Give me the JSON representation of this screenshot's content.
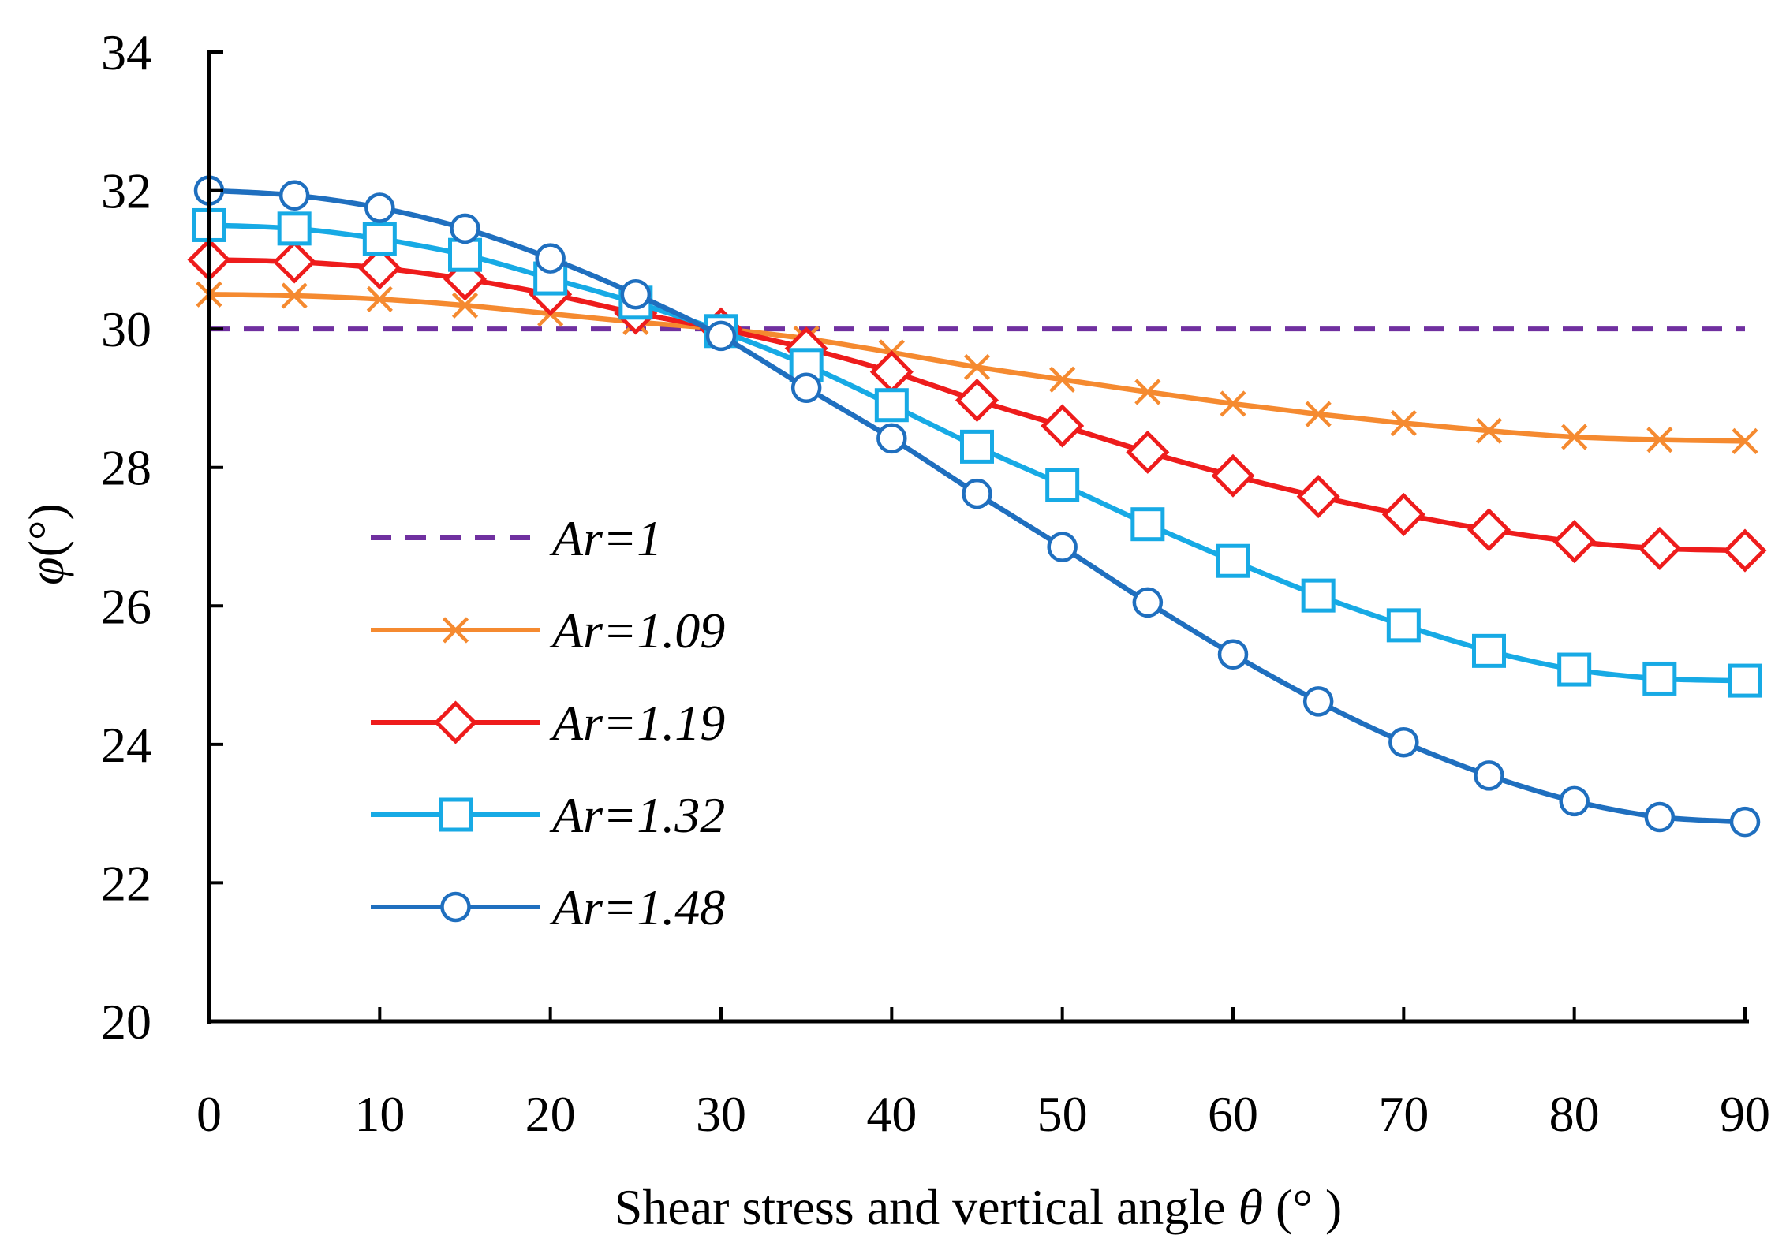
{
  "chart_data": {
    "type": "line",
    "title": "",
    "xlabel": "Shear stress and vertical angle θ (°  )",
    "xlabel_parts": {
      "text": "Shear stress and vertical angle ",
      "symbol": "θ",
      "unit": " (°  )"
    },
    "ylabel": "φ (°)",
    "ylabel_parts": {
      "symbol": "φ",
      "unit": "(°)"
    },
    "xlim": [
      0,
      90
    ],
    "ylim": [
      20,
      34
    ],
    "x_ticks": [
      0,
      10,
      20,
      30,
      40,
      50,
      60,
      70,
      80,
      90
    ],
    "y_ticks": [
      20,
      22,
      24,
      26,
      28,
      30,
      32,
      34
    ],
    "grid": false,
    "legend_position": "center-left",
    "x": [
      0,
      5,
      10,
      15,
      20,
      25,
      30,
      35,
      40,
      45,
      50,
      55,
      60,
      65,
      70,
      75,
      80,
      85,
      90
    ],
    "series": [
      {
        "name": "Ar=1",
        "color": "#7030A0",
        "marker": "none",
        "dash": "dashed",
        "values": [
          30,
          30,
          30,
          30,
          30,
          30,
          30,
          30,
          30,
          30,
          30,
          30,
          30,
          30,
          30,
          30,
          30,
          30,
          30
        ]
      },
      {
        "name": "Ar=1.09",
        "color": "#F58A30",
        "marker": "x",
        "dash": "solid",
        "values": [
          30.5,
          30.48,
          30.43,
          30.34,
          30.22,
          30.1,
          30.0,
          29.86,
          29.66,
          29.45,
          29.27,
          29.09,
          28.92,
          28.77,
          28.64,
          28.53,
          28.44,
          28.4,
          28.38
        ]
      },
      {
        "name": "Ar=1.19",
        "color": "#EE1C1C",
        "marker": "diamond",
        "dash": "solid",
        "values": [
          31.0,
          30.97,
          30.88,
          30.72,
          30.5,
          30.23,
          30.0,
          29.72,
          29.38,
          28.97,
          28.6,
          28.22,
          27.88,
          27.58,
          27.32,
          27.1,
          26.93,
          26.83,
          26.8
        ]
      },
      {
        "name": "Ar=1.32",
        "color": "#17AAE5",
        "marker": "square",
        "dash": "solid",
        "values": [
          31.5,
          31.45,
          31.3,
          31.07,
          30.73,
          30.38,
          29.97,
          29.48,
          28.9,
          28.3,
          27.75,
          27.18,
          26.65,
          26.15,
          25.72,
          25.35,
          25.08,
          24.95,
          24.92
        ]
      },
      {
        "name": "Ar=1.48",
        "color": "#1F6FBF",
        "marker": "circle",
        "dash": "solid",
        "values": [
          32.0,
          31.93,
          31.75,
          31.45,
          31.02,
          30.5,
          29.9,
          29.15,
          28.42,
          27.62,
          26.85,
          26.05,
          25.3,
          24.62,
          24.03,
          23.55,
          23.18,
          22.95,
          22.88
        ]
      }
    ]
  }
}
